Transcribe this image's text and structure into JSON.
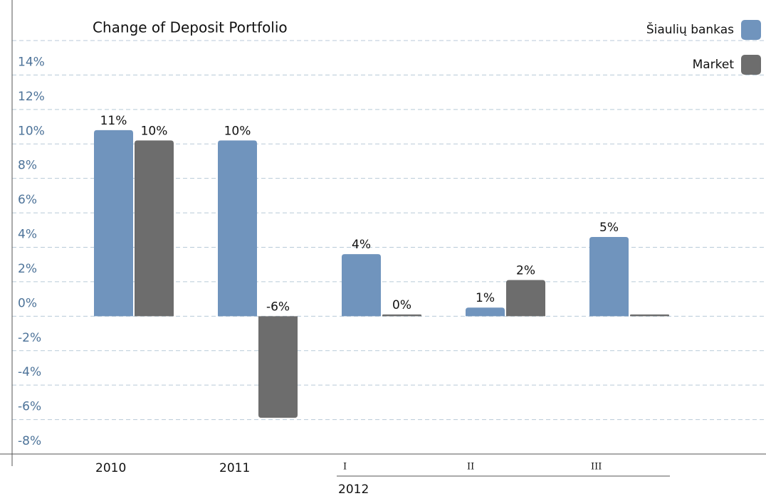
{
  "chart_data": {
    "type": "bar",
    "title": "Change of Deposit Portfolio",
    "categories": [
      "2010",
      "2011",
      "I",
      "II",
      "III"
    ],
    "groups": [
      {
        "name": "2012",
        "categories": [
          "I",
          "II",
          "III"
        ]
      }
    ],
    "series": [
      {
        "name": "Šiaulių bankas",
        "color": "#7094bd",
        "values": [
          10.8,
          10.2,
          3.6,
          0.5,
          4.6
        ],
        "value_labels": [
          "11%",
          "10%",
          "4%",
          "1%",
          "5%"
        ]
      },
      {
        "name": "Market",
        "color": "#6d6d6d",
        "values": [
          10.2,
          -5.9,
          0.1,
          2.1,
          0.1
        ],
        "value_labels": [
          "10%",
          "-6%",
          "0%",
          "2%",
          null
        ]
      }
    ],
    "ylim": [
      -8,
      16
    ],
    "yticks": [
      {
        "value": -8,
        "label": "-8%"
      },
      {
        "value": -6,
        "label": "-6%"
      },
      {
        "value": -4,
        "label": "-4%"
      },
      {
        "value": -2,
        "label": "-2%"
      },
      {
        "value": 0,
        "label": "0%"
      },
      {
        "value": 2,
        "label": "2%"
      },
      {
        "value": 4,
        "label": "4%"
      },
      {
        "value": 6,
        "label": "6%"
      },
      {
        "value": 8,
        "label": "8%"
      },
      {
        "value": 10,
        "label": "10%"
      },
      {
        "value": 12,
        "label": "12%"
      },
      {
        "value": 14,
        "label": "14%"
      }
    ],
    "grid": true,
    "legend": "upper right"
  }
}
